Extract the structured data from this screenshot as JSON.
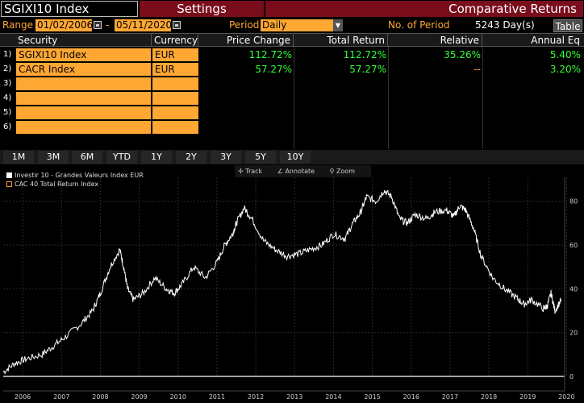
{
  "titlebar": {
    "ticker": "SGIXI10 Index",
    "settings": "Settings",
    "comparative": "Comparative Returns"
  },
  "range": {
    "label": "Range",
    "start": "01/02/2006",
    "dash": "-",
    "end": "05/11/2020",
    "period_label": "Period",
    "period_value": "Daily",
    "nop_label": "No. of Period",
    "nop_value": "5243 Day(s)",
    "table_button": "Table"
  },
  "table": {
    "headers": [
      "Security",
      "Currency",
      "Price Change",
      "Total Return",
      "Relative",
      "Annual Eq"
    ],
    "rows": [
      {
        "num": "1)",
        "security": "SGIXI10 Index",
        "currency": "EUR",
        "price_change": "112.72%",
        "total_return": "112.72%",
        "relative": "35.26%",
        "annual_eq": "5.40%"
      },
      {
        "num": "2)",
        "security": "CACR Index",
        "currency": "EUR",
        "price_change": "57.27%",
        "total_return": "57.27%",
        "relative": "--",
        "annual_eq": "3.20%"
      },
      {
        "num": "3)",
        "security": "",
        "currency": "",
        "price_change": "",
        "total_return": "",
        "relative": "",
        "annual_eq": ""
      },
      {
        "num": "4)",
        "security": "",
        "currency": "",
        "price_change": "",
        "total_return": "",
        "relative": "",
        "annual_eq": ""
      },
      {
        "num": "5)",
        "security": "",
        "currency": "",
        "price_change": "",
        "total_return": "",
        "relative": "",
        "annual_eq": ""
      },
      {
        "num": "6)",
        "security": "",
        "currency": "",
        "price_change": "",
        "total_return": "",
        "relative": "",
        "annual_eq": ""
      }
    ]
  },
  "period_tabs": [
    "1M",
    "3M",
    "6M",
    "YTD",
    "1Y",
    "2Y",
    "3Y",
    "5Y",
    "10Y"
  ],
  "chart_tools": {
    "track": "Track",
    "annotate": "Annotate",
    "zoom": "Zoom"
  },
  "colors": {
    "orange": "#ffa733",
    "green": "#33ff33",
    "tab_red": "#7a0d1b"
  },
  "chart_data": {
    "type": "line",
    "legend": [
      "Investir 10 - Grandes Valeurs Index EUR",
      "CAC 40 Total Return Index"
    ],
    "y_ticks": [
      0,
      20,
      40,
      60,
      80
    ],
    "x_ticks": [
      "2006",
      "2007",
      "2008",
      "2009",
      "2010",
      "2011",
      "2012",
      "2013",
      "2014",
      "2015",
      "2016",
      "2017",
      "2018",
      "2019",
      "2020"
    ],
    "ylim": [
      0,
      88
    ],
    "series": [
      {
        "name": "Investir 10 - Grandes Valeurs Index EUR",
        "x": [
          2006.0,
          2006.3,
          2006.6,
          2007.0,
          2007.3,
          2007.6,
          2008.0,
          2008.3,
          2008.5,
          2008.75,
          2009.0,
          2009.1,
          2009.2,
          2009.35,
          2009.6,
          2009.9,
          2010.2,
          2010.4,
          2010.6,
          2010.9,
          2011.2,
          2011.5,
          2011.7,
          2011.9,
          2012.0,
          2012.2,
          2012.4,
          2012.7,
          2013.0,
          2013.3,
          2013.6,
          2013.9,
          2014.2,
          2014.5,
          2014.8,
          2015.0,
          2015.2,
          2015.35,
          2015.6,
          2015.8,
          2016.0,
          2016.2,
          2016.4,
          2016.6,
          2016.9,
          2017.1,
          2017.4,
          2017.6,
          2017.75,
          2017.9,
          2018.1,
          2018.3,
          2018.6,
          2018.9,
          2019.2,
          2019.4,
          2019.6,
          2019.9,
          2020.0,
          2020.1,
          2020.2,
          2020.36
        ],
        "values": [
          2,
          6,
          8,
          10,
          14,
          18,
          24,
          30,
          38,
          50,
          58,
          50,
          40,
          35,
          38,
          45,
          40,
          38,
          42,
          50,
          45,
          52,
          60,
          65,
          70,
          77,
          72,
          62,
          58,
          55,
          56,
          58,
          60,
          65,
          63,
          70,
          75,
          82,
          80,
          85,
          82,
          72,
          70,
          74,
          72,
          75,
          76,
          73,
          78,
          76,
          68,
          55,
          45,
          40,
          36,
          33,
          35,
          31,
          32,
          38,
          30,
          35
        ]
      }
    ]
  }
}
